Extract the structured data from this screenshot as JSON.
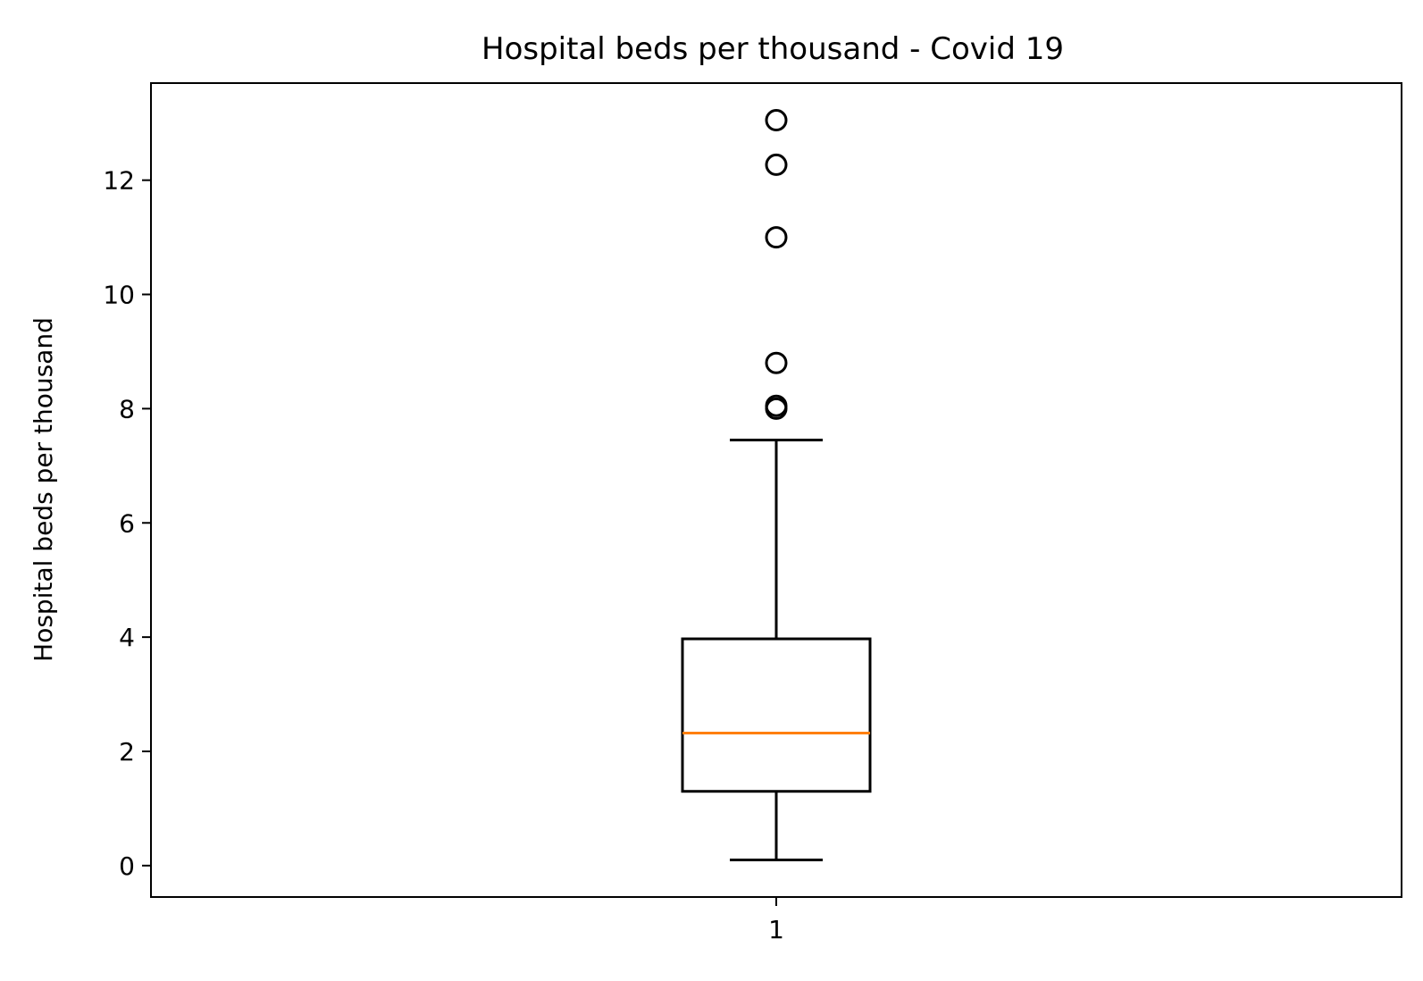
{
  "chart_data": {
    "type": "box",
    "title": "Hospital beds per thousand - Covid 19",
    "xlabel": "",
    "ylabel": "Hospital beds per thousand",
    "x_ticks": [
      "1"
    ],
    "y_ticks": [
      0,
      2,
      4,
      6,
      8,
      10,
      12
    ],
    "ylim": [
      -0.55,
      13.7
    ],
    "grid": false,
    "legend": "none",
    "boxes": [
      {
        "label": "1",
        "whisker_low": 0.1,
        "q1": 1.3,
        "median": 2.32,
        "q3": 3.97,
        "whisker_high": 7.45,
        "outliers": [
          8.0,
          8.05,
          8.8,
          11.0,
          12.27,
          13.05
        ]
      }
    ],
    "colors": {
      "box": "#000000",
      "median": "#ff7f0e",
      "flier": "#000000"
    }
  }
}
